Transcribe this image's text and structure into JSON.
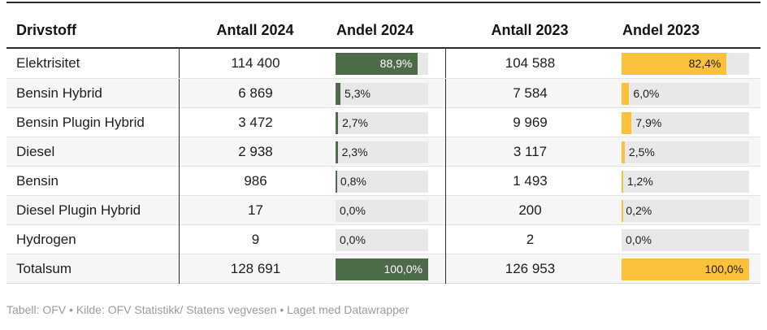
{
  "chart_data": {
    "type": "table",
    "title": "",
    "columns": [
      "Drivstoff",
      "Antall 2024",
      "Andel 2024",
      "Antall 2023",
      "Andel 2023"
    ],
    "rows": [
      [
        "Elektrisitet",
        114400,
        88.9,
        104588,
        82.4
      ],
      [
        "Bensin Hybrid",
        6869,
        5.3,
        7584,
        6.0
      ],
      [
        "Bensin Plugin Hybrid",
        3472,
        2.7,
        9969,
        7.9
      ],
      [
        "Diesel",
        2938,
        2.3,
        3117,
        2.5
      ],
      [
        "Bensin",
        986,
        0.8,
        1493,
        1.2
      ],
      [
        "Diesel Plugin Hybrid",
        17,
        0.0,
        200,
        0.2
      ],
      [
        "Hydrogen",
        9,
        0.0,
        2,
        0.0
      ],
      [
        "Totalsum",
        128691,
        100.0,
        126953,
        100.0
      ]
    ],
    "bar_columns": [
      {
        "column": "Andel 2024",
        "color": "#4d6a49",
        "range": [
          0,
          100
        ]
      },
      {
        "column": "Andel 2023",
        "color": "#fbc13a",
        "range": [
          0,
          100
        ]
      }
    ],
    "legend_position": "none",
    "grid": false
  },
  "table": {
    "rows": [
      {
        "label": "Elektrisitet",
        "antall_2024": "114 400",
        "andel_2024": "88,9%",
        "andel_2024_pct": 88.9,
        "antall_2023": "104 588",
        "andel_2023": "82,4%",
        "andel_2023_pct": 82.4
      },
      {
        "label": "Bensin Hybrid",
        "antall_2024": "6 869",
        "andel_2024": "5,3%",
        "andel_2024_pct": 5.3,
        "antall_2023": "7 584",
        "andel_2023": "6,0%",
        "andel_2023_pct": 6.0
      },
      {
        "label": "Bensin Plugin Hybrid",
        "antall_2024": "3 472",
        "andel_2024": "2,7%",
        "andel_2024_pct": 2.7,
        "antall_2023": "9 969",
        "andel_2023": "7,9%",
        "andel_2023_pct": 7.9
      },
      {
        "label": "Diesel",
        "antall_2024": "2 938",
        "andel_2024": "2,3%",
        "andel_2024_pct": 2.3,
        "antall_2023": "3 117",
        "andel_2023": "2,5%",
        "andel_2023_pct": 2.5
      },
      {
        "label": "Bensin",
        "antall_2024": "986",
        "andel_2024": "0,8%",
        "andel_2024_pct": 0.8,
        "antall_2023": "1 493",
        "andel_2023": "1,2%",
        "andel_2023_pct": 1.2
      },
      {
        "label": "Diesel Plugin Hybrid",
        "antall_2024": "17",
        "andel_2024": "0,0%",
        "andel_2024_pct": 0.0,
        "antall_2023": "200",
        "andel_2023": "0,2%",
        "andel_2023_pct": 0.2
      },
      {
        "label": "Hydrogen",
        "antall_2024": "9",
        "andel_2024": "0,0%",
        "andel_2024_pct": 0.0,
        "antall_2023": "2",
        "andel_2023": "0,0%",
        "andel_2023_pct": 0.0
      },
      {
        "label": "Totalsum",
        "antall_2024": "128 691",
        "andel_2024": "100,0%",
        "andel_2024_pct": 100.0,
        "antall_2023": "126 953",
        "andel_2023": "100,0%",
        "andel_2023_pct": 100.0
      }
    ]
  },
  "footer": {
    "text": "Tabell: OFV • Kilde: OFV Statistikk/ Statens vegvesen • Laget med Datawrapper"
  },
  "colors": {
    "bar_2024": "#4d6a49",
    "bar_2023": "#fbc13a",
    "bar_track": "#e8e8e8",
    "row_stripe": "#f6f6f6",
    "rule_dark": "#2b2b2b",
    "footer_text": "#9b9b9b"
  }
}
